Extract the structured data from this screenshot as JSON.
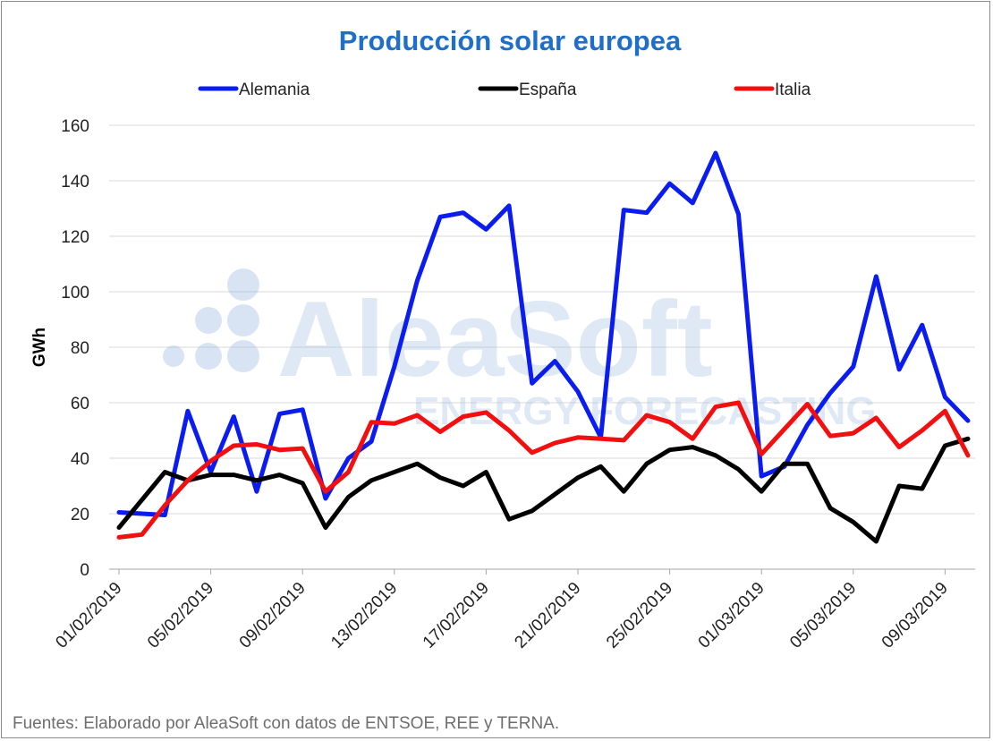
{
  "colors": {
    "title": "#1f6fc9",
    "Alemania": "#0a1cf0",
    "España": "#000000",
    "Italia": "#f20f0f",
    "grid": "#d9d9d9",
    "watermark": "#8fb2dc"
  },
  "watermark": {
    "brand": "AleaSoft",
    "tagline": "ENERGY FORECASTING"
  },
  "chart_data": {
    "type": "line",
    "title": "Producción solar europea",
    "xlabel": "",
    "ylabel": "GWh",
    "ylim": [
      0,
      160
    ],
    "yticks": [
      "0",
      "20",
      "40",
      "60",
      "80",
      "100",
      "120",
      "140",
      "160"
    ],
    "xticks": [
      "01/02/2019",
      "05/02/2019",
      "09/02/2019",
      "13/02/2019",
      "17/02/2019",
      "21/02/2019",
      "25/02/2019",
      "01/03/2019",
      "05/03/2019",
      "09/03/2019"
    ],
    "x": [
      "01/02/2019",
      "02/02/2019",
      "03/02/2019",
      "04/02/2019",
      "05/02/2019",
      "06/02/2019",
      "07/02/2019",
      "08/02/2019",
      "09/02/2019",
      "10/02/2019",
      "11/02/2019",
      "12/02/2019",
      "13/02/2019",
      "14/02/2019",
      "15/02/2019",
      "16/02/2019",
      "17/02/2019",
      "18/02/2019",
      "19/02/2019",
      "20/02/2019",
      "21/02/2019",
      "22/02/2019",
      "23/02/2019",
      "24/02/2019",
      "25/02/2019",
      "26/02/2019",
      "27/02/2019",
      "28/02/2019",
      "01/03/2019",
      "02/03/2019",
      "03/03/2019",
      "04/03/2019",
      "05/03/2019",
      "06/03/2019",
      "07/03/2019",
      "08/03/2019",
      "09/03/2019",
      "10/03/2019"
    ],
    "grid": true,
    "legend": "top",
    "series": [
      {
        "name": "Alemania",
        "values": [
          20.5,
          20,
          19.5,
          57,
          35,
          55,
          28,
          56,
          57.5,
          25.5,
          40,
          46,
          73,
          104,
          127,
          128.5,
          122.5,
          131,
          67,
          75,
          64,
          47.5,
          129.5,
          128.5,
          139,
          132,
          150,
          128,
          33.5,
          37,
          52,
          63.5,
          73,
          105.5,
          72,
          88,
          62,
          53.5
        ]
      },
      {
        "name": "España",
        "values": [
          15,
          25,
          35,
          32,
          34,
          34,
          32,
          34,
          31,
          15,
          26,
          32,
          35,
          38,
          33,
          30,
          35,
          18,
          21,
          27,
          33,
          37,
          28,
          38,
          43,
          44,
          41,
          36,
          28,
          38,
          38,
          22,
          17,
          10,
          30,
          29,
          44.5,
          47
        ]
      },
      {
        "name": "Italia",
        "values": [
          11.5,
          12.5,
          23,
          32,
          39,
          44.5,
          45,
          43,
          43.5,
          28,
          35,
          53,
          52.5,
          55.5,
          49.5,
          55,
          56.5,
          50,
          42,
          45.5,
          47.5,
          47,
          46.5,
          55.5,
          53,
          47,
          58.5,
          60,
          41.5,
          50.5,
          59.5,
          48,
          49,
          54.5,
          44,
          50,
          57,
          41
        ]
      }
    ]
  },
  "footer": {
    "source": "Fuentes: Elaborado por AleaSoft con datos de ENTSOE, REE y TERNA."
  }
}
